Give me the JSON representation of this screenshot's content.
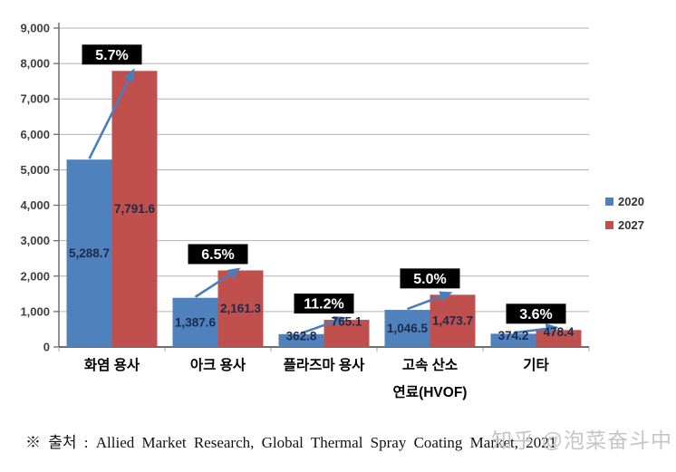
{
  "chart_data": {
    "type": "bar",
    "categories": [
      [
        "화염 용사"
      ],
      [
        "아크 용사"
      ],
      [
        "플라즈마 용사"
      ],
      [
        "고속 산소",
        "연료(HVOF)"
      ],
      [
        "기타"
      ]
    ],
    "series": [
      {
        "name": "2020",
        "color": "#4F81BD",
        "values": [
          5288.7,
          1387.6,
          362.8,
          1046.5,
          374.2
        ],
        "value_labels": [
          "5,288.7",
          "1,387.6",
          "362.8",
          "1,046.5",
          "374.2"
        ]
      },
      {
        "name": "2027",
        "color": "#C0504D",
        "values": [
          7791.6,
          2161.3,
          765.1,
          1473.7,
          478.4
        ],
        "value_labels": [
          "7,791.6",
          "2,161.3",
          "765.1",
          "1,473.7",
          "478.4"
        ]
      }
    ],
    "growth_labels": [
      "5.7%",
      "6.5%",
      "11.2%",
      "5.0%",
      "3.6%"
    ],
    "title": "",
    "xlabel": "",
    "ylabel": "",
    "ylim": [
      0,
      9000
    ],
    "ytick_step": 1000,
    "ytick_labels": [
      "0",
      "1,000",
      "2,000",
      "3,000",
      "4,000",
      "5,000",
      "6,000",
      "7,000",
      "8,000",
      "9,000"
    ],
    "grid": true,
    "legend_position": "right"
  },
  "colors": {
    "series_2020": "#4F81BD",
    "series_2027": "#C0504D",
    "growth_box_bg": "#000000",
    "growth_box_text": "#FFFFFF",
    "value_label_text": "#1c2b4a",
    "gridline": "#b3b3b3",
    "axis": "#6e6e6e",
    "arrow": "#4a7ebb",
    "watermark_text": "#c5c5c5"
  },
  "footer": {
    "source": "※ 출처 : Allied Market Research, Global Thermal Spray Coating Market, 2021",
    "watermark": "知乎 @泡菜奋斗中"
  }
}
